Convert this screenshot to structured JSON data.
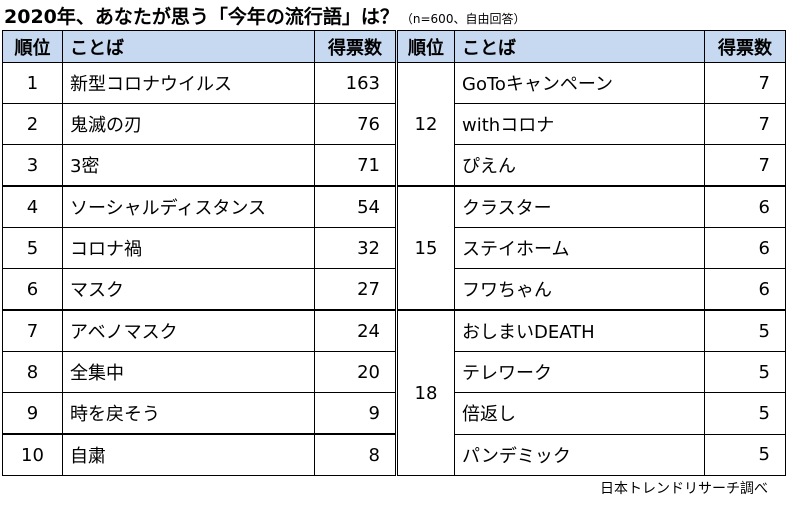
{
  "title": "2020年、あなたが思う「今年の流行語」は？",
  "subtitle": "（n=600、自由回答）",
  "headers": {
    "rank": "順位",
    "word": "ことば",
    "votes": "得票数"
  },
  "left": [
    {
      "rank": "1",
      "word": "新型コロナウイルス",
      "votes": "163"
    },
    {
      "rank": "2",
      "word": "鬼滅の刃",
      "votes": "76"
    },
    {
      "rank": "3",
      "word": "3密",
      "votes": "71"
    },
    {
      "rank": "4",
      "word": "ソーシャルディスタンス",
      "votes": "54"
    },
    {
      "rank": "5",
      "word": "コロナ禍",
      "votes": "32"
    },
    {
      "rank": "6",
      "word": "マスク",
      "votes": "27"
    },
    {
      "rank": "7",
      "word": "アベノマスク",
      "votes": "24"
    },
    {
      "rank": "8",
      "word": "全集中",
      "votes": "20"
    },
    {
      "rank": "9",
      "word": "時を戻そう",
      "votes": "9"
    },
    {
      "rank": "10",
      "word": "自粛",
      "votes": "8"
    }
  ],
  "right": [
    {
      "rank": "12",
      "items": [
        {
          "word": "GoToキャンペーン",
          "votes": "7"
        },
        {
          "word": "withコロナ",
          "votes": "7"
        },
        {
          "word": "ぴえん",
          "votes": "7"
        }
      ]
    },
    {
      "rank": "15",
      "items": [
        {
          "word": "クラスター",
          "votes": "6"
        },
        {
          "word": "ステイホーム",
          "votes": "6"
        },
        {
          "word": "フワちゃん",
          "votes": "6"
        }
      ]
    },
    {
      "rank": "18",
      "items": [
        {
          "word": "おしまいDEATH",
          "votes": "5"
        },
        {
          "word": "テレワーク",
          "votes": "5"
        },
        {
          "word": "倍返し",
          "votes": "5"
        },
        {
          "word": "パンデミック",
          "votes": "5"
        }
      ]
    }
  ],
  "source": "日本トレンドリサーチ調べ"
}
